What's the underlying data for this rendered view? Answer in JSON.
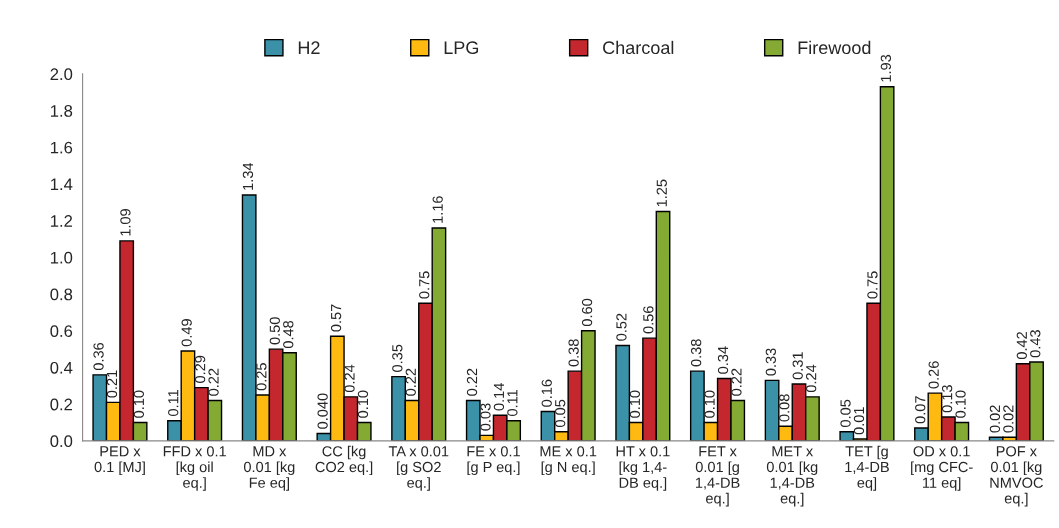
{
  "chart_data": {
    "type": "bar",
    "categories": [
      "PED x\n0.1 [MJ]",
      "FFD x 0.1\n[kg oil\neq.]",
      "MD x\n0.01 [kg\nFe eq]",
      "CC [kg\nCO2 eq.]",
      "TA x 0.01\n[g SO2\neq.]",
      "FE x 0.1\n[g P eq.]",
      "ME x 0.1\n[g N eq.]",
      "HT x 0.1\n[kg 1,4-\nDB eq.]",
      "FET x\n0.01 [g\n1,4-DB\neq.]",
      "MET x\n0.01 [kg\n1,4-DB\neq.]",
      "TET [g\n1,4-DB\neq]",
      "OD x 0.1\n[mg CFC-\n11 eq]",
      "POF x\n0.01 [kg\nNMVOC\neq.]"
    ],
    "series": [
      {
        "name": "H2",
        "color": "#3a91a8",
        "values": [
          0.36,
          0.11,
          1.34,
          0.04,
          0.35,
          0.22,
          0.16,
          0.52,
          0.38,
          0.33,
          0.05,
          0.07,
          0.02
        ],
        "value_labels": [
          "0.36",
          "0.11",
          "1.34",
          "0.040",
          "0.35",
          "0.22",
          "0.16",
          "0.52",
          "0.38",
          "0.33",
          "0.05",
          "0.07",
          "0.02"
        ]
      },
      {
        "name": "LPG",
        "color": "#ffba12",
        "values": [
          0.21,
          0.49,
          0.25,
          0.57,
          0.22,
          0.03,
          0.05,
          0.1,
          0.1,
          0.08,
          0.01,
          0.26,
          0.02
        ],
        "value_labels": [
          "0.21",
          "0.49",
          "0.25",
          "0.57",
          "0.22",
          "0.03",
          "0.05",
          "0.10",
          "0.10",
          "0.08",
          "0.01",
          "0.26",
          "0.02"
        ]
      },
      {
        "name": "Charcoal",
        "color": "#c4282e",
        "values": [
          1.09,
          0.29,
          0.5,
          0.24,
          0.75,
          0.14,
          0.38,
          0.56,
          0.34,
          0.31,
          0.75,
          0.13,
          0.42
        ],
        "value_labels": [
          "1.09",
          "0.29",
          "0.50",
          "0.24",
          "0.75",
          "0.14",
          "0.38",
          "0.56",
          "0.34",
          "0.31",
          "0.75",
          "0.13",
          "0.42"
        ]
      },
      {
        "name": "Firewood",
        "color": "#84aa34",
        "values": [
          0.1,
          0.22,
          0.48,
          0.1,
          1.16,
          0.11,
          0.6,
          1.25,
          0.22,
          0.24,
          1.93,
          0.1,
          0.43
        ],
        "value_labels": [
          "0.10",
          "0.22",
          "0.48",
          "0.10",
          "1.16",
          "0.11",
          "0.60",
          "1.25",
          "0.22",
          "0.24",
          "1.93",
          "0.10",
          "0.43"
        ]
      }
    ],
    "ylim": [
      0,
      2.0
    ],
    "yticks": [
      {
        "value": 0,
        "label": "0.0"
      },
      {
        "value": 0.2,
        "label": "0.2"
      },
      {
        "value": 0.4,
        "label": "0.4"
      },
      {
        "value": 0.6,
        "label": "0.6"
      },
      {
        "value": 0.8,
        "label": "0.8"
      },
      {
        "value": 1.0,
        "label": "1.0"
      },
      {
        "value": 1.2,
        "label": "1.2"
      },
      {
        "value": 1.4,
        "label": "1.4"
      },
      {
        "value": 1.6,
        "label": "1.6"
      },
      {
        "value": 1.8,
        "label": "1.8"
      },
      {
        "value": 2.0,
        "label": "2.0"
      }
    ],
    "grid": false,
    "legend": "top"
  }
}
